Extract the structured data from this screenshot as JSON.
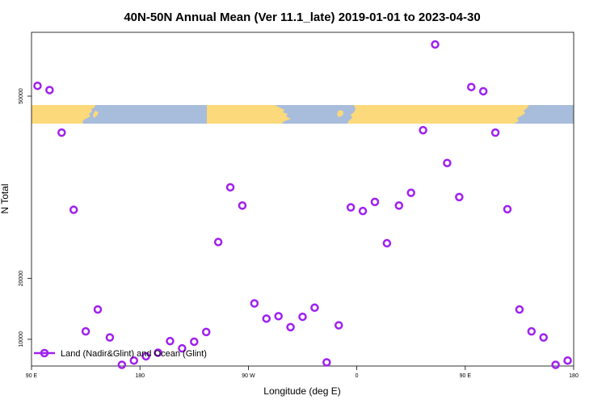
{
  "chart_data": {
    "type": "scatter",
    "title": "40N-50N Annual Mean (Ver 11.1_late)   2019-01-01 to 2023-04-30",
    "xlabel": "Longitude (deg E)",
    "ylabel": "N Total",
    "xlim": [
      90,
      540
    ],
    "ylim": [
      5600,
      60500
    ],
    "x_ticks": [
      {
        "value": 90,
        "label": "90 E"
      },
      {
        "value": 180,
        "label": "180"
      },
      {
        "value": 270,
        "label": "90 W"
      },
      {
        "value": 360,
        "label": "0"
      },
      {
        "value": 450,
        "label": "90 E"
      },
      {
        "value": 540,
        "label": "180"
      }
    ],
    "y_ticks": [
      {
        "value": 10000,
        "label": "10000"
      },
      {
        "value": 20000,
        "label": "20000"
      },
      {
        "value": 50000,
        "label": "50000"
      }
    ],
    "series": [
      {
        "name": "Land (Nadir&Glint) and Ocean (Glint)",
        "color": "#a020f0",
        "points": [
          [
            95,
            51700
          ],
          [
            105,
            51000
          ],
          [
            115,
            44000
          ],
          [
            125,
            31300
          ],
          [
            135,
            11300
          ],
          [
            145,
            14900
          ],
          [
            155,
            10300
          ],
          [
            165,
            5800
          ],
          [
            175,
            6500
          ],
          [
            185,
            7200
          ],
          [
            195,
            7800
          ],
          [
            205,
            9700
          ],
          [
            215,
            8500
          ],
          [
            225,
            9600
          ],
          [
            235,
            11200
          ],
          [
            245,
            26000
          ],
          [
            255,
            35000
          ],
          [
            265,
            32000
          ],
          [
            275,
            15900
          ],
          [
            285,
            13400
          ],
          [
            295,
            13800
          ],
          [
            305,
            12000
          ],
          [
            315,
            13700
          ],
          [
            325,
            15200
          ],
          [
            335,
            6200
          ],
          [
            345,
            12300
          ],
          [
            355,
            31700
          ],
          [
            365,
            31100
          ],
          [
            375,
            32600
          ],
          [
            385,
            25800
          ],
          [
            395,
            32000
          ],
          [
            405,
            34100
          ],
          [
            415,
            44400
          ],
          [
            425,
            58500
          ],
          [
            435,
            39000
          ],
          [
            445,
            33400
          ],
          [
            455,
            51500
          ],
          [
            465,
            50800
          ],
          [
            475,
            44000
          ],
          [
            485,
            31400
          ],
          [
            495,
            14900
          ],
          [
            505,
            11300
          ],
          [
            515,
            10300
          ],
          [
            525,
            5800
          ],
          [
            535,
            6500
          ]
        ]
      }
    ],
    "legend": {
      "position": "bottom-left",
      "label": "Land (Nadir&Glint) and Ocean (Glint)"
    }
  },
  "colors": {
    "ocean": "#a8bcdc",
    "land": "#fcd97a",
    "marker": "#a020f0"
  }
}
